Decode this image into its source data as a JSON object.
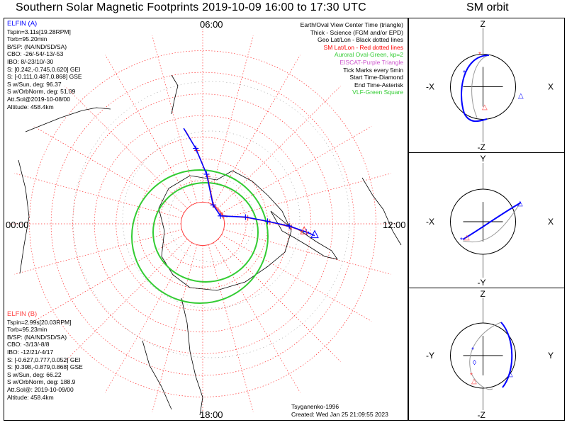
{
  "title": "Southern Solar Magnetic Footprints 2019-10-09 16:00 to 17:30 UTC",
  "orbit_title": "SM orbit",
  "spacecraft_a": {
    "name": "ELFIN (A)",
    "color": "#0000ff",
    "lines": [
      "Tspin=3.11s[19.28RPM]",
      "Torb=95.20min",
      "B/SP: (NA/ND/SD/SA)",
      "CBO: -26/-54/-13/-53",
      "IBO: 8/-23/10/-30",
      "S: [0.242,-0.745,0.620] GEI",
      "S: [-0.111,0.487,0.868] GSE",
      "S w/Sun, deg: 96.37",
      "S w/OrbNorm, deg: 51.09",
      "Att.Sol@2019-10-08/00",
      "Altitude: 458.4km"
    ]
  },
  "spacecraft_b": {
    "name": "ELFIN (B)",
    "color": "#ff4444",
    "lines": [
      "Tspin=2.99s[20.03RPM]",
      "Torb=95.23min",
      "B/SP: (NA/ND/SD/SA)",
      "CBO: -3/13/-8/8",
      "IBO: -12/21/-4/17",
      "S: [-0.627,0.777,0.052] GEI",
      "S: [0.398,-0.879,0.868] GSE",
      "S w/Sun, deg: 66.22",
      "S w/OrbNorm, deg: 188.9",
      "Att.Sol@: 2019-10-09/00",
      "Altitude: 458.4km"
    ]
  },
  "legend": [
    {
      "text": "Earth/Oval View Center Time (triangle)",
      "color": "#000000"
    },
    {
      "text": "Thick - Science (FGM and/or EPD)",
      "color": "#000000"
    },
    {
      "text": "Geo Lat/Lon - Black dotted lines",
      "color": "#000000"
    },
    {
      "text": "SM Lat/Lon - Red dotted lines",
      "color": "#ff0000"
    },
    {
      "text": "Auroral Oval-Green, kp=2",
      "color": "#33cc33"
    },
    {
      "text": "EISCAT-Purple Triangle",
      "color": "#cc55cc"
    },
    {
      "text": "Tick Marks every 5min",
      "color": "#000000"
    },
    {
      "text": "Start Time-Diamond",
      "color": "#000000"
    },
    {
      "text": "End Time-Asterisk",
      "color": "#000000"
    },
    {
      "text": "VLF-Green Square",
      "color": "#33cc33"
    }
  ],
  "footer": {
    "model": "Tsyganenko-1996",
    "created": "Created: Wed Jan 25 21:09:55 2023"
  },
  "chart_data": {
    "type": "polar-footprint-map",
    "hemisphere": "southern",
    "mlt_labels": {
      "top": "06:00",
      "left": "00:00",
      "right": "12:00",
      "bottom": "18:00"
    },
    "sm_latitude_rings_deg": [
      -80,
      -70,
      -60,
      -50,
      -40,
      -30,
      -20,
      -10
    ],
    "sm_longitude_spokes_deg": 15,
    "auroral_oval_kp": 2,
    "track_a_polar": {
      "description": "footprint track as [MLT hours, |SM latitude| deg]",
      "points": [
        [
          5.25,
          45
        ],
        [
          5.65,
          55
        ],
        [
          6.3,
          67
        ],
        [
          7.9,
          80
        ],
        [
          10.4,
          81
        ],
        [
          11.4,
          70
        ],
        [
          11.85,
          60
        ],
        [
          12.1,
          50
        ],
        [
          12.3,
          42
        ],
        [
          12.4,
          38
        ]
      ]
    },
    "track_b_polar": {
      "points": [
        [
          5.3,
          46
        ],
        [
          5.7,
          56
        ],
        [
          6.4,
          68
        ],
        [
          8.0,
          80
        ],
        [
          10.5,
          80
        ],
        [
          11.5,
          69
        ],
        [
          11.9,
          59
        ],
        [
          12.15,
          49
        ],
        [
          12.3,
          43
        ]
      ]
    },
    "orbit_panels": [
      {
        "id": "xz",
        "h_labels": [
          "-X",
          "X"
        ],
        "v_labels": [
          "Z",
          "-Z"
        ]
      },
      {
        "id": "xy",
        "h_labels": [
          "-X",
          "X"
        ],
        "v_labels": [
          "Y",
          "-Y"
        ]
      },
      {
        "id": "yz",
        "h_labels": [
          "-Y",
          "Y"
        ],
        "v_labels": [
          "Z",
          "-Z"
        ]
      }
    ]
  }
}
